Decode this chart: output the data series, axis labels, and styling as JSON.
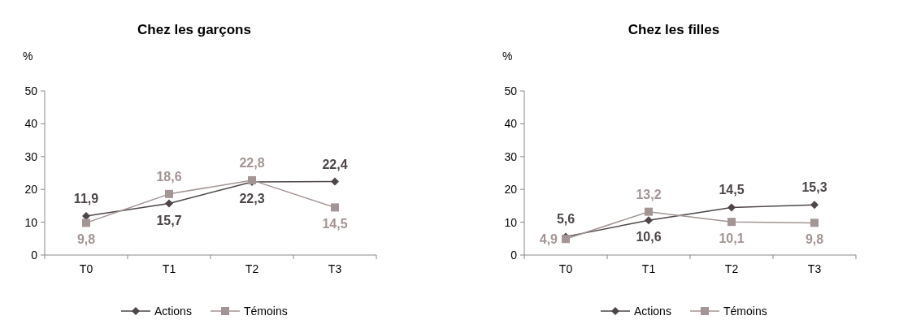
{
  "chart_data": [
    {
      "type": "line",
      "title": "Chez les garçons",
      "ylabel": "%",
      "categories": [
        "T0",
        "T1",
        "T2",
        "T3"
      ],
      "ylim": [
        0,
        50
      ],
      "yticks": [
        0,
        10,
        20,
        30,
        40,
        50
      ],
      "grid": false,
      "legend": "bottom",
      "series": [
        {
          "name": "Actions",
          "color": "#4d4546",
          "marker": "diamond",
          "values": [
            11.9,
            15.7,
            22.3,
            22.4
          ],
          "value_labels": [
            "11,9",
            "15,7",
            "22,3",
            "22,4"
          ]
        },
        {
          "name": "Témoins",
          "color": "#a39593",
          "marker": "square",
          "values": [
            9.8,
            18.6,
            22.8,
            14.5
          ],
          "value_labels": [
            "9,8",
            "18,6",
            "22,8",
            "14,5"
          ]
        }
      ]
    },
    {
      "type": "line",
      "title": "Chez les filles",
      "ylabel": "%",
      "categories": [
        "T0",
        "T1",
        "T2",
        "T3"
      ],
      "ylim": [
        0,
        50
      ],
      "yticks": [
        0,
        10,
        20,
        30,
        40,
        50
      ],
      "grid": false,
      "legend": "bottom",
      "series": [
        {
          "name": "Actions",
          "color": "#4d4546",
          "marker": "diamond",
          "values": [
            5.6,
            10.6,
            14.5,
            15.3
          ],
          "value_labels": [
            "5,6",
            "10,6",
            "14,5",
            "15,3"
          ]
        },
        {
          "name": "Témoins",
          "color": "#a39593",
          "marker": "square",
          "values": [
            4.9,
            13.2,
            10.1,
            9.8
          ],
          "value_labels": [
            "4,9",
            "13,2",
            "10,1",
            "9,8"
          ]
        }
      ]
    }
  ]
}
